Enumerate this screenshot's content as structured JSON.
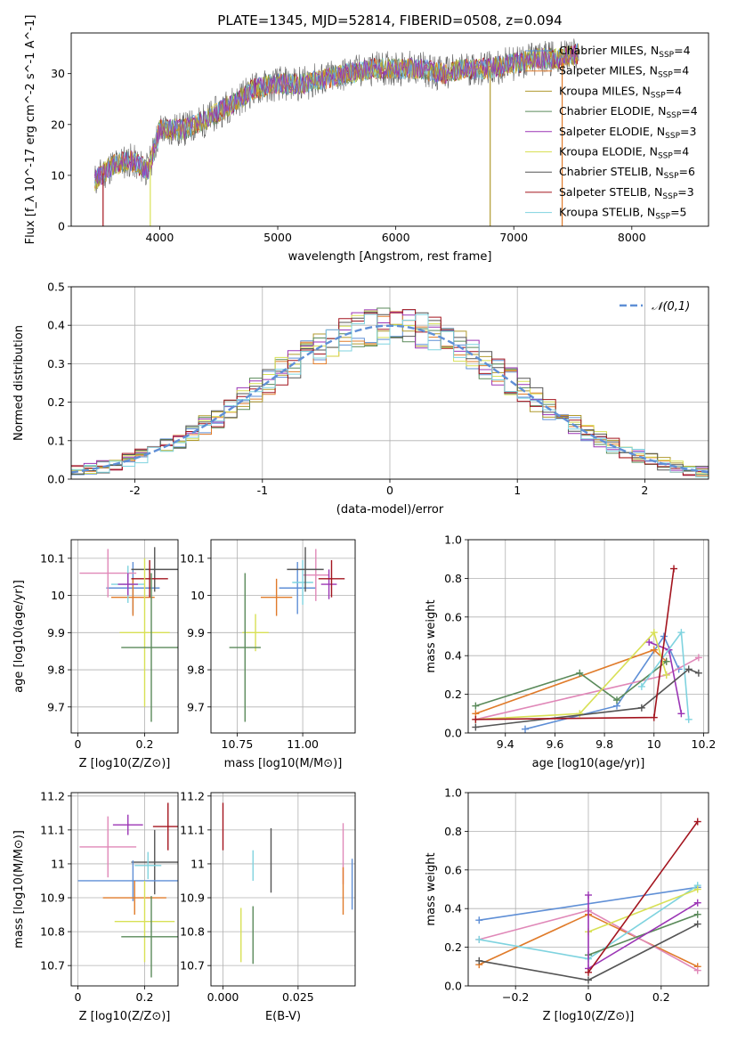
{
  "title": "PLATE=1345, MJD=52814, FIBERID=0508, z=0.094",
  "colors": {
    "Chabrier MILES": "#5f8fd6",
    "Salpeter MILES": "#e07b2a",
    "Kroupa MILES": "#b09a2e",
    "Chabrier ELODIE": "#5a8a5a",
    "Salpeter ELODIE": "#9b35b5",
    "Kroupa ELODIE": "#d8e055",
    "Chabrier STELIB": "#555555",
    "Salpeter STELIB": "#a3141e",
    "Kroupa STELIB": "#7fd3df",
    "extra_pink": "#e088b8",
    "normal": "#5f8fd6"
  },
  "chart_data": [
    {
      "id": "spectrum",
      "type": "line",
      "xlabel": "wavelength [Angstrom, rest frame]",
      "ylabel": "Flux [f_λ 10^-17 erg cm^-2 s^-1 A^-1]",
      "xlim": [
        3250,
        8650
      ],
      "ylim": [
        0,
        38
      ],
      "xticks": [
        4000,
        5000,
        6000,
        7000,
        8000
      ],
      "yticks": [
        0,
        10,
        20,
        30
      ],
      "grid": false,
      "legend": "top-right",
      "series": [
        {
          "name": "Chabrier MILES",
          "nssp": "4"
        },
        {
          "name": "Salpeter MILES",
          "nssp": "4"
        },
        {
          "name": "Kroupa MILES",
          "nssp": "4"
        },
        {
          "name": "Chabrier ELODIE",
          "nssp": "4"
        },
        {
          "name": "Salpeter ELODIE",
          "nssp": "3"
        },
        {
          "name": "Kroupa ELODIE",
          "nssp": "4"
        },
        {
          "name": "Chabrier STELIB",
          "nssp": "6"
        },
        {
          "name": "Salpeter STELIB",
          "nssp": "3"
        },
        {
          "name": "Kroupa STELIB",
          "nssp": "5"
        }
      ],
      "continuum": [
        {
          "x": 3450,
          "y": 9
        },
        {
          "x": 3600,
          "y": 12
        },
        {
          "x": 3750,
          "y": 13
        },
        {
          "x": 3900,
          "y": 11
        },
        {
          "x": 4000,
          "y": 19
        },
        {
          "x": 4200,
          "y": 19
        },
        {
          "x": 4400,
          "y": 21
        },
        {
          "x": 4600,
          "y": 24
        },
        {
          "x": 4800,
          "y": 27
        },
        {
          "x": 5000,
          "y": 28
        },
        {
          "x": 5200,
          "y": 28
        },
        {
          "x": 5400,
          "y": 29
        },
        {
          "x": 5600,
          "y": 30
        },
        {
          "x": 5800,
          "y": 31
        },
        {
          "x": 6000,
          "y": 31
        },
        {
          "x": 6200,
          "y": 31
        },
        {
          "x": 6400,
          "y": 30
        },
        {
          "x": 6600,
          "y": 31
        },
        {
          "x": 6800,
          "y": 31
        },
        {
          "x": 7000,
          "y": 32
        },
        {
          "x": 7200,
          "y": 33
        },
        {
          "x": 7400,
          "y": 33
        },
        {
          "x": 7550,
          "y": 34
        }
      ],
      "vertical_drops": [
        {
          "x": 3520,
          "name": "Salpeter STELIB"
        },
        {
          "x": 3920,
          "name": "Kroupa ELODIE"
        },
        {
          "x": 6800,
          "name": "Kroupa MILES"
        },
        {
          "x": 7410,
          "name": "Salpeter MILES"
        }
      ]
    },
    {
      "id": "residuals",
      "type": "line",
      "xlabel": "(data-model)/error",
      "ylabel": "Normed distribution",
      "xlim": [
        -2.5,
        2.5
      ],
      "ylim": [
        0,
        0.5
      ],
      "xticks": [
        -2,
        -1,
        0,
        1,
        2
      ],
      "yticks": [
        0.0,
        0.1,
        0.2,
        0.3,
        0.4,
        0.5
      ],
      "grid": true,
      "legend": "top-right",
      "legend_label": "𝒩(0,1)",
      "bin_width": 0.1,
      "x_start": -2.5
    },
    {
      "id": "age-vs-Z",
      "type": "scatter",
      "xlabel": "Z [log10(Z/Z⊙)]",
      "ylabel": "age [log10(age/yr)]",
      "xlim": [
        -0.02,
        0.3
      ],
      "ylim": [
        9.63,
        10.15
      ],
      "xticks": [
        0.0,
        0.2
      ],
      "yticks": [
        9.7,
        9.8,
        9.9,
        10.0,
        10.1
      ],
      "grid": true,
      "points": [
        {
          "c": "Chabrier MILES",
          "x": 0.165,
          "y": 10.02,
          "xe": 0.08,
          "ye": 0.07
        },
        {
          "c": "Salpeter MILES",
          "x": 0.165,
          "y": 9.995,
          "xe": 0.065,
          "ye": 0.05
        },
        {
          "c": "extra_pink",
          "x": 0.09,
          "y": 10.06,
          "xe": 0.085,
          "ye": 0.065
        },
        {
          "c": "Kroupa STELIB",
          "x": 0.15,
          "y": 10.03,
          "xe": 0.05,
          "ye": 0.05
        },
        {
          "c": "Salpeter ELODIE",
          "x": 0.15,
          "y": 10.03,
          "xe": 0.03,
          "ye": 0.03
        },
        {
          "c": "Chabrier STELIB",
          "x": 0.23,
          "y": 10.07,
          "xe": 0.07,
          "ye": 0.06
        },
        {
          "c": "Salpeter STELIB",
          "x": 0.215,
          "y": 10.045,
          "xe": 0.055,
          "ye": 0.05
        },
        {
          "c": "Kroupa ELODIE",
          "x": 0.2,
          "y": 9.9,
          "xe": 0.075,
          "ye": 0.2
        },
        {
          "c": "Chabrier ELODIE",
          "x": 0.22,
          "y": 9.86,
          "xe": 0.09,
          "ye": 0.2
        }
      ]
    },
    {
      "id": "age-vs-mass",
      "type": "scatter",
      "xlabel": "mass [log10(M/M⊙)]",
      "ylabel": "",
      "xlim": [
        10.65,
        11.2
      ],
      "ylim": [
        9.63,
        10.15
      ],
      "xticks": [
        10.75,
        11.0
      ],
      "xticklabels": [
        "10.75",
        "11.00"
      ],
      "yticks": [
        9.7,
        9.8,
        9.9,
        10.0,
        10.1
      ],
      "grid": true,
      "points": [
        {
          "c": "Chabrier MILES",
          "x": 10.98,
          "y": 10.02,
          "xe": 0.07,
          "ye": 0.07
        },
        {
          "c": "Salpeter MILES",
          "x": 10.9,
          "y": 9.995,
          "xe": 0.06,
          "ye": 0.05
        },
        {
          "c": "extra_pink",
          "x": 11.05,
          "y": 10.055,
          "xe": 0.05,
          "ye": 0.07
        },
        {
          "c": "Kroupa STELIB",
          "x": 11.0,
          "y": 10.035,
          "xe": 0.04,
          "ye": 0.06
        },
        {
          "c": "Salpeter ELODIE",
          "x": 11.1,
          "y": 10.03,
          "xe": 0.03,
          "ye": 0.04
        },
        {
          "c": "Chabrier STELIB",
          "x": 11.01,
          "y": 10.07,
          "xe": 0.07,
          "ye": 0.06
        },
        {
          "c": "Salpeter STELIB",
          "x": 11.11,
          "y": 10.045,
          "xe": 0.05,
          "ye": 0.05
        },
        {
          "c": "Kroupa ELODIE",
          "x": 10.82,
          "y": 9.9,
          "xe": 0.05,
          "ye": 0.05
        },
        {
          "c": "Chabrier ELODIE",
          "x": 10.78,
          "y": 9.86,
          "xe": 0.06,
          "ye": 0.2
        }
      ]
    },
    {
      "id": "weight-vs-age",
      "type": "line",
      "xlabel": "age [log10(age/yr)]",
      "ylabel": "mass weight",
      "xlim": [
        9.25,
        10.22
      ],
      "ylim": [
        0,
        1.0
      ],
      "xticks": [
        9.4,
        9.6,
        9.8,
        10.0,
        10.2
      ],
      "yticks": [
        0.0,
        0.2,
        0.4,
        0.6,
        0.8,
        1.0
      ],
      "grid": true,
      "series": [
        {
          "c": "Chabrier MILES",
          "points": [
            [
              9.48,
              0.02
            ],
            [
              9.85,
              0.14
            ],
            [
              10.04,
              0.5
            ],
            [
              10.1,
              0.33
            ]
          ]
        },
        {
          "c": "Salpeter MILES",
          "points": [
            [
              9.28,
              0.1
            ],
            [
              10.0,
              0.43
            ],
            [
              10.05,
              0.37
            ]
          ]
        },
        {
          "c": "extra_pink",
          "points": [
            [
              9.28,
              0.07
            ],
            [
              10.05,
              0.3
            ],
            [
              10.18,
              0.39
            ]
          ]
        },
        {
          "c": "Chabrier ELODIE",
          "points": [
            [
              9.28,
              0.14
            ],
            [
              9.7,
              0.31
            ],
            [
              9.85,
              0.17
            ],
            [
              10.05,
              0.37
            ]
          ]
        },
        {
          "c": "Salpeter ELODIE",
          "points": [
            [
              9.98,
              0.47
            ],
            [
              10.06,
              0.43
            ],
            [
              10.11,
              0.1
            ]
          ]
        },
        {
          "c": "Kroupa ELODIE",
          "points": [
            [
              9.28,
              0.07
            ],
            [
              9.7,
              0.1
            ],
            [
              10.0,
              0.52
            ],
            [
              10.05,
              0.3
            ]
          ]
        },
        {
          "c": "Kroupa STELIB",
          "points": [
            [
              9.95,
              0.24
            ],
            [
              10.11,
              0.52
            ],
            [
              10.14,
              0.07
            ]
          ]
        },
        {
          "c": "Chabrier STELIB",
          "points": [
            [
              9.28,
              0.03
            ],
            [
              9.95,
              0.13
            ],
            [
              10.14,
              0.33
            ],
            [
              10.18,
              0.31
            ]
          ]
        },
        {
          "c": "Salpeter STELIB",
          "points": [
            [
              9.28,
              0.07
            ],
            [
              10.0,
              0.08
            ],
            [
              10.08,
              0.85
            ]
          ]
        }
      ]
    },
    {
      "id": "mass-vs-Z",
      "type": "scatter",
      "xlabel": "Z [log10(Z/Z⊙)]",
      "ylabel": "mass [log10(M/M⊙)]",
      "xlim": [
        -0.02,
        0.3
      ],
      "ylim": [
        10.64,
        11.21
      ],
      "xticks": [
        0.0,
        0.2
      ],
      "yticks": [
        10.7,
        10.8,
        10.9,
        11.0,
        11.1,
        11.2
      ],
      "grid": true,
      "points": [
        {
          "c": "Salpeter STELIB",
          "x": 0.27,
          "y": 11.11,
          "xe": 0.045,
          "ye": 0.07
        },
        {
          "c": "Salpeter ELODIE",
          "x": 0.15,
          "y": 11.115,
          "xe": 0.045,
          "ye": 0.03
        },
        {
          "c": "extra_pink",
          "x": 0.09,
          "y": 11.05,
          "xe": 0.085,
          "ye": 0.09
        },
        {
          "c": "Chabrier STELIB",
          "x": 0.23,
          "y": 11.005,
          "xe": 0.07,
          "ye": 0.095
        },
        {
          "c": "Kroupa STELIB",
          "x": 0.21,
          "y": 10.995,
          "xe": 0.04,
          "ye": 0.04
        },
        {
          "c": "Chabrier MILES",
          "x": 0.165,
          "y": 10.95,
          "xe": 0.165,
          "ye": 0.06
        },
        {
          "c": "Salpeter MILES",
          "x": 0.17,
          "y": 10.9,
          "xe": 0.095,
          "ye": 0.05
        },
        {
          "c": "Kroupa ELODIE",
          "x": 0.2,
          "y": 10.83,
          "xe": 0.09,
          "ye": 0.12
        },
        {
          "c": "Chabrier ELODIE",
          "x": 0.22,
          "y": 10.785,
          "xe": 0.09,
          "ye": 0.12
        }
      ]
    },
    {
      "id": "mass-vs-EBV",
      "type": "scatter",
      "xlabel": "E(B-V)",
      "ylabel": "",
      "xlim": [
        -0.004,
        0.044
      ],
      "ylim": [
        10.64,
        11.21
      ],
      "xticks": [
        0.0,
        0.025
      ],
      "xticklabels": [
        "0.000",
        "0.025"
      ],
      "yticks": [
        10.7,
        10.8,
        10.9,
        11.0,
        11.1,
        11.2
      ],
      "grid": true,
      "points": [
        {
          "c": "Salpeter STELIB",
          "x": 0.0,
          "y": 11.11,
          "xe": 0.0,
          "ye": 0.07
        },
        {
          "c": "Kroupa STELIB",
          "x": 0.01,
          "y": 10.995,
          "xe": 0.0,
          "ye": 0.045
        },
        {
          "c": "Chabrier STELIB",
          "x": 0.016,
          "y": 11.01,
          "xe": 0.0,
          "ye": 0.095
        },
        {
          "c": "extra_pink",
          "x": 0.04,
          "y": 11.03,
          "xe": 0.0,
          "ye": 0.09
        },
        {
          "c": "Salpeter MILES",
          "x": 0.04,
          "y": 10.92,
          "xe": 0.0,
          "ye": 0.07
        },
        {
          "c": "Chabrier MILES",
          "x": 0.043,
          "y": 10.94,
          "xe": 0.0,
          "ye": 0.075
        },
        {
          "c": "Kroupa ELODIE",
          "x": 0.006,
          "y": 10.79,
          "xe": 0.0,
          "ye": 0.08
        },
        {
          "c": "Chabrier ELODIE",
          "x": 0.01,
          "y": 10.79,
          "xe": 0.0,
          "ye": 0.085
        }
      ]
    },
    {
      "id": "weight-vs-Z",
      "type": "line",
      "xlabel": "Z [log10(Z/Z⊙)]",
      "ylabel": "mass weight",
      "xlim": [
        -0.33,
        0.33
      ],
      "ylim": [
        0,
        1.0
      ],
      "xticks": [
        -0.2,
        0.0,
        0.2
      ],
      "yticks": [
        0.0,
        0.2,
        0.4,
        0.6,
        0.8,
        1.0
      ],
      "grid": true,
      "series": [
        {
          "c": "Chabrier MILES",
          "points": [
            [
              -0.3,
              0.34
            ],
            [
              0.3,
              0.51
            ]
          ]
        },
        {
          "c": "Salpeter MILES",
          "points": [
            [
              -0.3,
              0.11
            ],
            [
              0.0,
              0.37
            ],
            [
              0.3,
              0.1
            ]
          ]
        },
        {
          "c": "extra_pink",
          "points": [
            [
              -0.3,
              0.24
            ],
            [
              0.0,
              0.39
            ],
            [
              0.3,
              0.08
            ]
          ]
        },
        {
          "c": "Kroupa STELIB",
          "points": [
            [
              -0.3,
              0.24
            ],
            [
              0.0,
              0.14
            ],
            [
              0.3,
              0.52
            ]
          ]
        },
        {
          "c": "Kroupa ELODIE",
          "points": [
            [
              0.0,
              0.28
            ],
            [
              0.3,
              0.5
            ]
          ]
        },
        {
          "c": "Chabrier ELODIE",
          "points": [
            [
              0.0,
              0.16
            ],
            [
              0.3,
              0.37
            ]
          ]
        },
        {
          "c": "Salpeter ELODIE",
          "points": [
            [
              0.0,
              0.47
            ],
            [
              0.0,
              0.09
            ],
            [
              0.3,
              0.43
            ]
          ]
        },
        {
          "c": "Chabrier STELIB",
          "points": [
            [
              -0.3,
              0.13
            ],
            [
              0.0,
              0.03
            ],
            [
              0.3,
              0.32
            ]
          ]
        },
        {
          "c": "Salpeter STELIB",
          "points": [
            [
              0.0,
              0.07
            ],
            [
              0.3,
              0.85
            ]
          ]
        }
      ]
    }
  ]
}
